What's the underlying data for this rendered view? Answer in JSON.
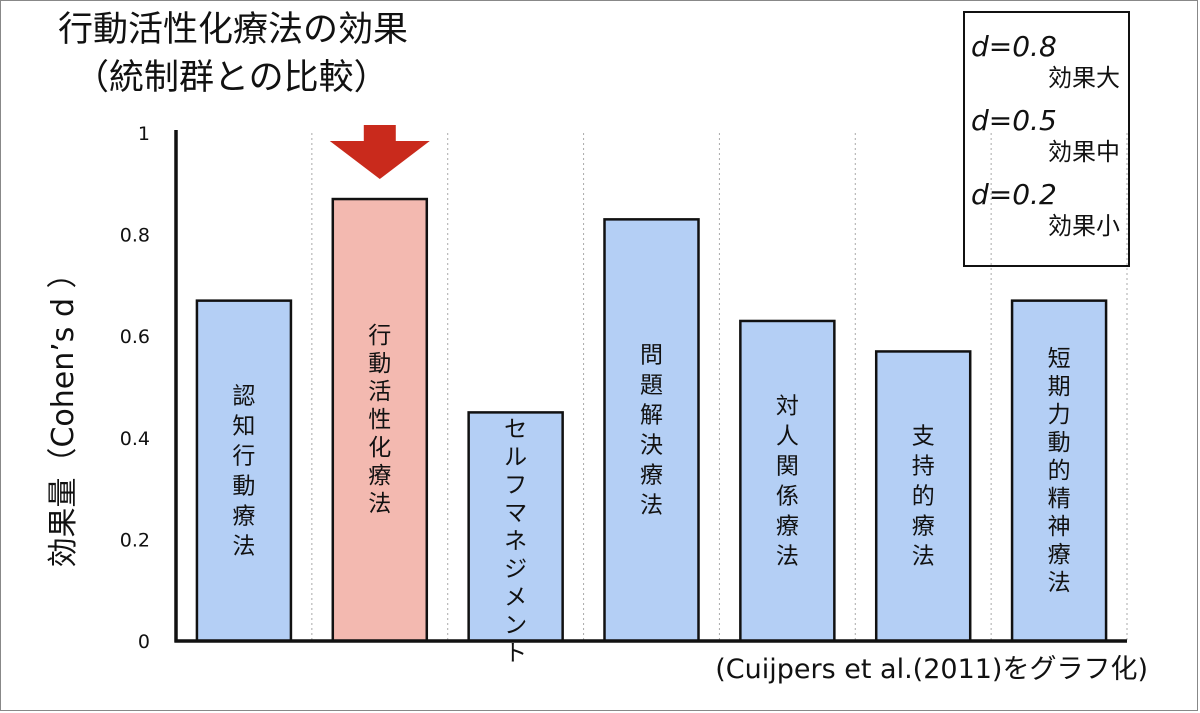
{
  "title": "行動活性化療法の効果",
  "subtitle": "（統制群との比較）",
  "source": "(Cuijpers et al.(2011)をグラフ化)",
  "legend": [
    {
      "d": "d=0.8",
      "label": "効果大"
    },
    {
      "d": "d=0.5",
      "label": "効果中"
    },
    {
      "d": "d=0.2",
      "label": "効果小"
    }
  ],
  "chart_data": {
    "type": "bar",
    "ylabel": "効果量（Cohen’s d ）",
    "xlabel": "",
    "ylim": [
      0,
      1
    ],
    "yticks": [
      "0",
      "0.2",
      "0.4",
      "0.6",
      "0.8",
      "1"
    ],
    "grid": "vertical dotted separators between categories",
    "categories": [
      "認知行動療法",
      "行動活性化療法",
      "セルフマネジメント",
      "問題解決療法",
      "対人関係療法",
      "支持的療法",
      "短期力動的精神療法"
    ],
    "values": [
      0.67,
      0.87,
      0.45,
      0.83,
      0.63,
      0.57,
      0.67
    ],
    "highlight_index": 1,
    "highlight_marker": "down-arrow",
    "colors": {
      "bar": "#b4cff5",
      "highlight_bar": "#f3b9b0",
      "arrow": "#c92a1c",
      "bar_edge": "#111111"
    }
  }
}
